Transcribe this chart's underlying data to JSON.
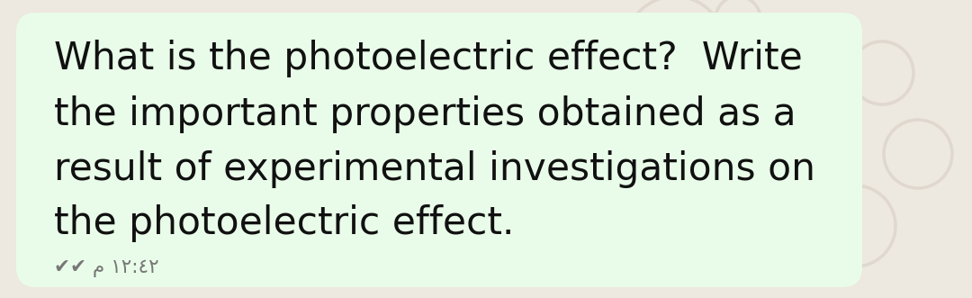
{
  "outer_bg_color": "#ede8e0",
  "bubble_color": "#e9fce9",
  "text_line1": "What is the photoelectric effect?  Write",
  "text_line2": "the important properties obtained as a",
  "text_line3": "result of experimental investigations on",
  "text_line4": "the photoelectric effect.",
  "timestamp": "✔✔ م ١٢:٤٢",
  "text_color": "#111111",
  "timestamp_color": "#777777",
  "font_size": 30.5,
  "timestamp_font_size": 15.5
}
